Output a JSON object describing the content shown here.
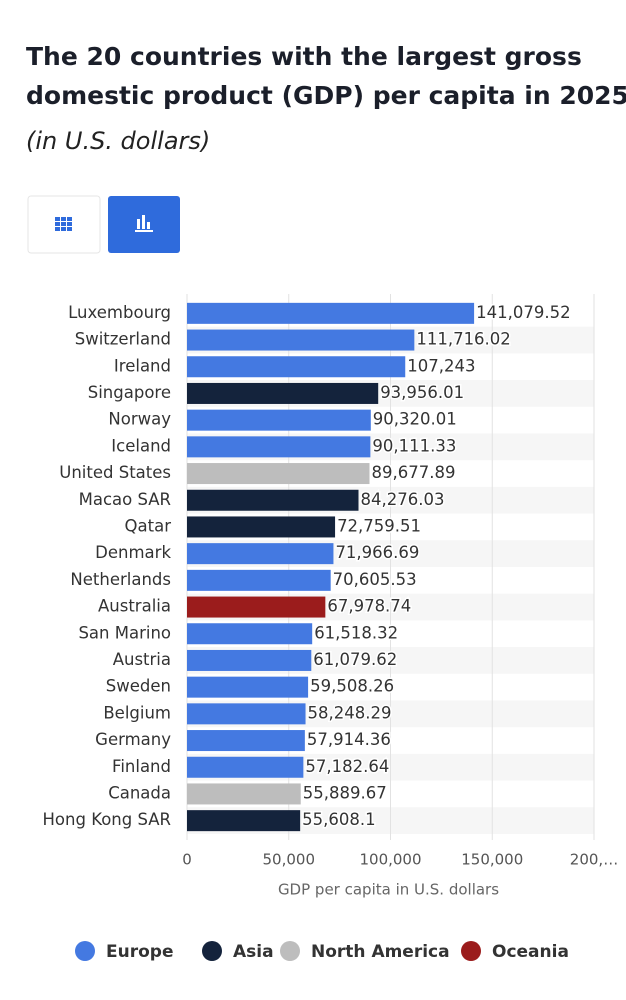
{
  "chart_data": {
    "type": "bar",
    "orientation": "horizontal",
    "title": [
      "The 20 countries with the largest gross",
      "domestic product (GDP) per capita in 2025"
    ],
    "subtitle": "(in U.S. dollars)",
    "x_label": "GDP per capita in U.S. dollars",
    "categories": [
      "Luxembourg",
      "Switzerland",
      "Ireland",
      "Singapore",
      "Norway",
      "Iceland",
      "United States",
      "Macao SAR",
      "Qatar",
      "Denmark",
      "Netherlands",
      "Australia",
      "San Marino",
      "Austria",
      "Sweden",
      "Belgium",
      "Germany",
      "Finland",
      "Canada",
      "Hong Kong SAR"
    ],
    "series": [
      {
        "name": "Europe",
        "color": "#4479e1",
        "values": [
          141079.52,
          111716.02,
          107243,
          null,
          90320.01,
          90111.33,
          null,
          null,
          null,
          71966.69,
          70605.53,
          null,
          61518.32,
          61079.62,
          59508.26,
          58248.29,
          57914.36,
          57182.64,
          null,
          null
        ],
        "value_labels": [
          "141,079.52",
          "111,716.02",
          "107,243",
          null,
          "90,320.01",
          "90,111.33",
          null,
          null,
          null,
          "71,966.69",
          "70,605.53",
          null,
          "61,518.32",
          "61,079.62",
          "59,508.26",
          "58,248.29",
          "57,914.36",
          "57,182.64",
          null,
          null
        ]
      },
      {
        "name": "Asia",
        "color": "#14233c",
        "values": [
          null,
          null,
          null,
          93956.01,
          null,
          null,
          null,
          84276.03,
          72759.51,
          null,
          null,
          null,
          null,
          null,
          null,
          null,
          null,
          null,
          null,
          55608.1
        ],
        "value_labels": [
          null,
          null,
          null,
          "93,956.01",
          null,
          null,
          null,
          "84,276.03",
          "72,759.51",
          null,
          null,
          null,
          null,
          null,
          null,
          null,
          null,
          null,
          null,
          "55,608.1"
        ]
      },
      {
        "name": "North America",
        "color": "#bdbdbd",
        "values": [
          null,
          null,
          null,
          null,
          null,
          null,
          89677.89,
          null,
          null,
          null,
          null,
          null,
          null,
          null,
          null,
          null,
          null,
          null,
          55889.67,
          null
        ],
        "value_labels": [
          null,
          null,
          null,
          null,
          null,
          null,
          "89,677.89",
          null,
          null,
          null,
          null,
          null,
          null,
          null,
          null,
          null,
          null,
          null,
          "55,889.67",
          null
        ]
      },
      {
        "name": "Oceania",
        "color": "#9b1c1c",
        "values": [
          null,
          null,
          null,
          null,
          null,
          null,
          null,
          null,
          null,
          null,
          null,
          67978.74,
          null,
          null,
          null,
          null,
          null,
          null,
          null,
          null
        ],
        "value_labels": [
          null,
          null,
          null,
          null,
          null,
          null,
          null,
          null,
          null,
          null,
          null,
          "67,978.74",
          null,
          null,
          null,
          null,
          null,
          null,
          null,
          null
        ]
      }
    ],
    "xlim": [
      0,
      200000
    ],
    "xticks": [
      0,
      {
        "value": 50000,
        "label": "50,000"
      },
      {
        "value": 100000,
        "label": "100,000"
      },
      {
        "value": 150000,
        "label": "150,000"
      },
      {
        "value": 200000,
        "label": "200,…"
      }
    ],
    "grid": true,
    "legend": "bottom"
  }
}
